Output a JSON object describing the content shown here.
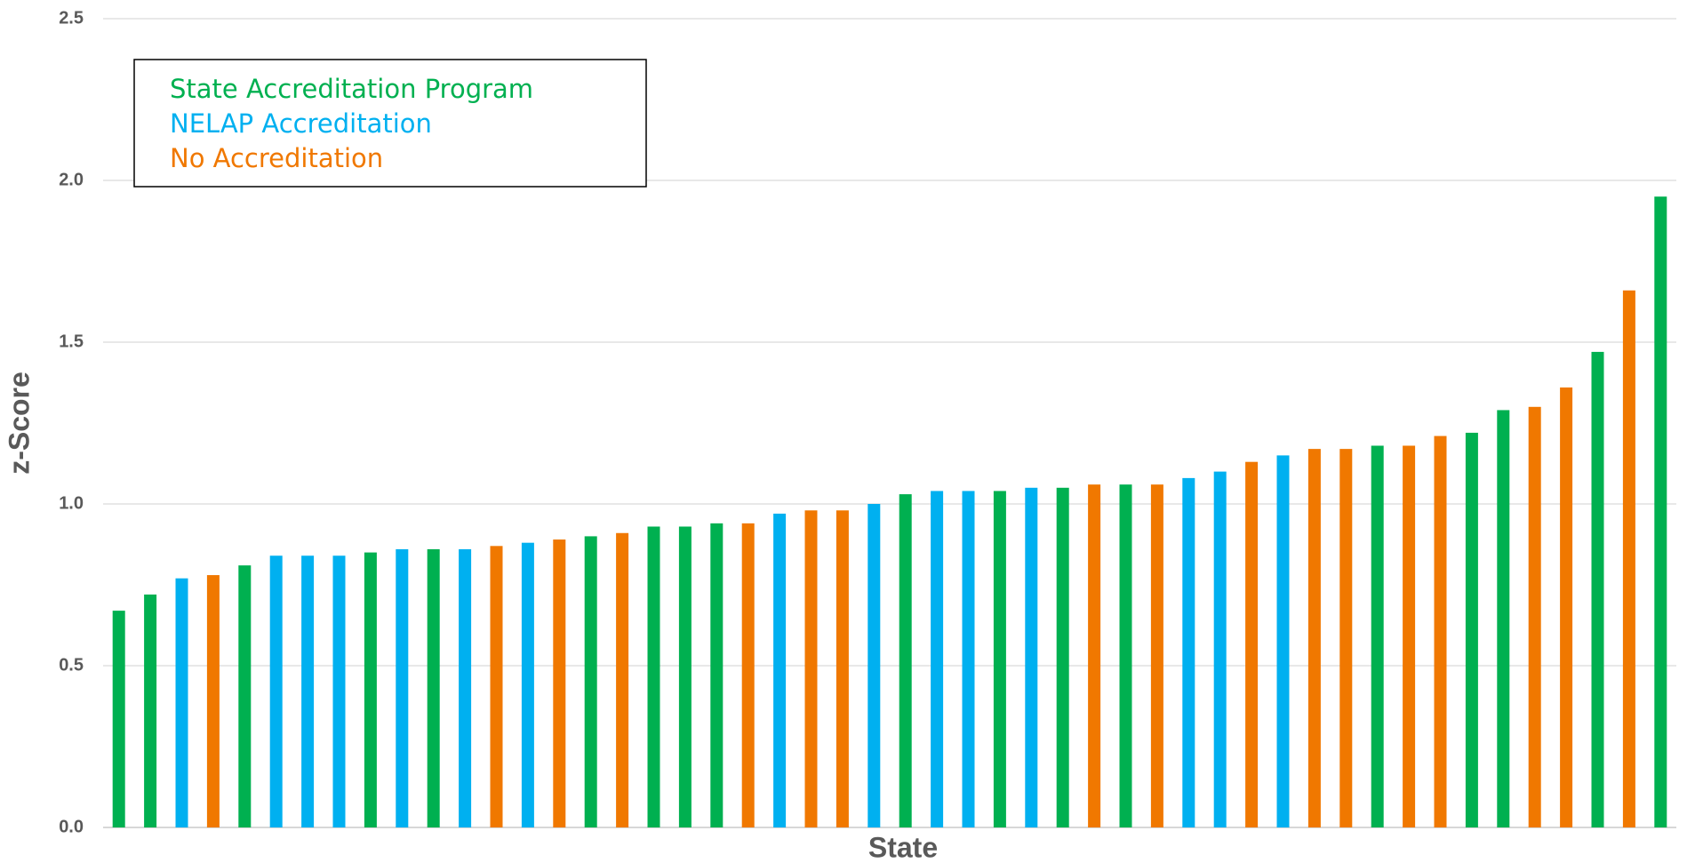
{
  "chart_data": {
    "type": "bar",
    "xlabel": "State",
    "ylabel": "z-Score",
    "categories": [
      null,
      null,
      null,
      null,
      null,
      null,
      null,
      null,
      null,
      null,
      null,
      null,
      null,
      null,
      null,
      null,
      null,
      null,
      null,
      null,
      null,
      null,
      null,
      null,
      null,
      null,
      null,
      null,
      null,
      null,
      null,
      null,
      null,
      null,
      null,
      null,
      null,
      null,
      null,
      null,
      null,
      null,
      null,
      null,
      null,
      null,
      null,
      null,
      null,
      null
    ],
    "series": [
      {
        "name": "State Accreditation Program",
        "color": "#00b050",
        "values": [
          0.67,
          0.72,
          null,
          null,
          0.81,
          null,
          null,
          null,
          0.85,
          null,
          0.86,
          null,
          null,
          null,
          null,
          0.9,
          null,
          0.93,
          0.93,
          0.94,
          null,
          null,
          null,
          null,
          null,
          1.03,
          null,
          null,
          1.04,
          null,
          1.05,
          null,
          1.06,
          null,
          null,
          null,
          null,
          null,
          null,
          null,
          1.18,
          null,
          null,
          1.22,
          1.29,
          null,
          null,
          1.47,
          null,
          1.95
        ]
      },
      {
        "name": "NELAP Accreditation",
        "color": "#00b0f0",
        "values": [
          null,
          null,
          0.77,
          null,
          null,
          0.84,
          0.84,
          0.84,
          null,
          0.86,
          null,
          0.86,
          null,
          0.88,
          null,
          null,
          null,
          null,
          null,
          null,
          null,
          0.97,
          null,
          null,
          1.0,
          null,
          1.04,
          1.04,
          null,
          1.05,
          null,
          null,
          null,
          null,
          1.08,
          1.1,
          null,
          1.15,
          null,
          null,
          null,
          null,
          null,
          null,
          null,
          null,
          null,
          null,
          null,
          null
        ]
      },
      {
        "name": "No Accreditation",
        "color": "#f07800",
        "values": [
          null,
          null,
          null,
          0.78,
          null,
          null,
          null,
          null,
          null,
          null,
          null,
          null,
          0.87,
          null,
          0.89,
          null,
          0.91,
          null,
          null,
          null,
          0.94,
          null,
          0.98,
          0.98,
          null,
          null,
          null,
          null,
          null,
          null,
          null,
          1.06,
          null,
          1.06,
          null,
          null,
          1.13,
          null,
          1.17,
          1.17,
          null,
          1.18,
          1.21,
          null,
          null,
          1.3,
          1.36,
          null,
          1.66,
          null
        ]
      }
    ],
    "ylim": [
      0,
      2.5
    ],
    "yticks": [
      {
        "value": 0,
        "label": "0.0"
      },
      {
        "value": 0.5,
        "label": "0.5"
      },
      {
        "value": 1,
        "label": "1.0"
      },
      {
        "value": 1.5,
        "label": "1.5"
      },
      {
        "value": 2,
        "label": "2.0"
      },
      {
        "value": 2.5,
        "label": "2.5"
      }
    ],
    "grid": true,
    "legend": "upper left"
  }
}
